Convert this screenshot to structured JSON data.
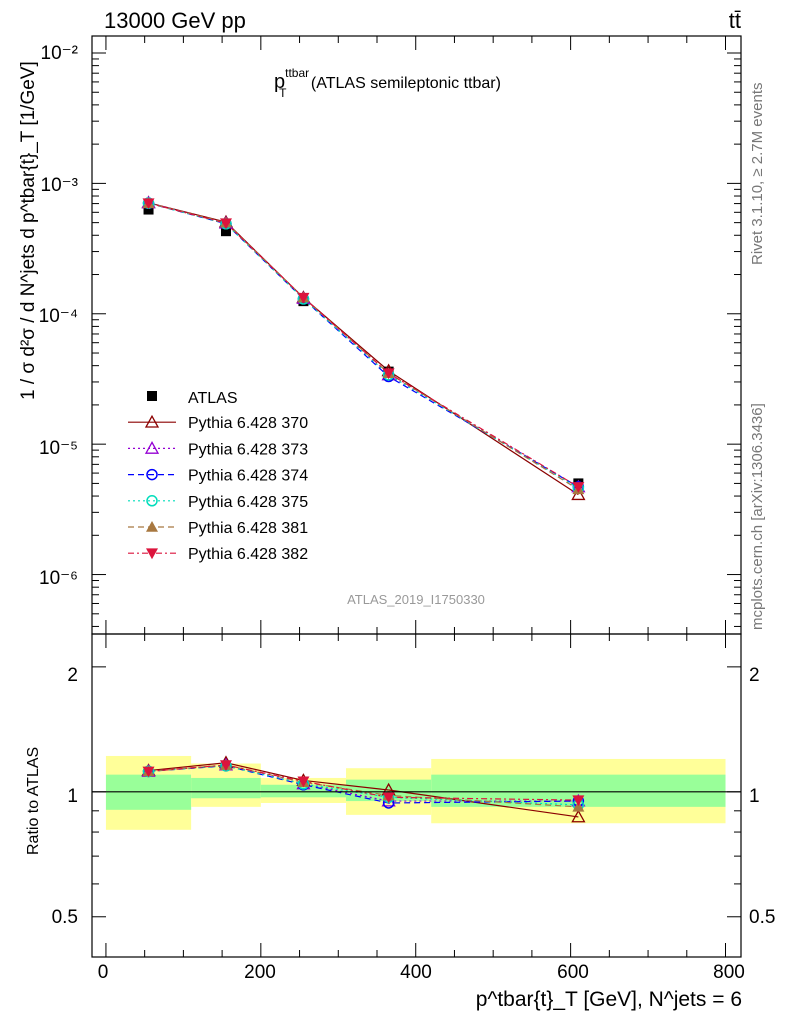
{
  "header": {
    "energy_label": "13000 GeV pp",
    "process_label": "tt̄"
  },
  "side": {
    "rivet_label": "Rivet 3.1.10, ≥ 2.7M events",
    "mcplots_label": "mcplots.cern.ch [arXiv:1306.3436]"
  },
  "main": {
    "title_main": "p",
    "title_sup": "ttbar",
    "title_sub": "T",
    "title_rest": " (ATLAS semileptonic ttbar)",
    "ylabel": "1 / σ d²σ / d N^jets d p^tbar{t}_T [1/GeV]",
    "analysis_id": "ATLAS_2019_I1750330",
    "ytick_labels": [
      "10⁻⁶",
      "10⁻⁵",
      "10⁻⁴",
      "10⁻³",
      "10⁻²"
    ]
  },
  "ratio": {
    "ylabel": "Ratio to ATLAS",
    "ytick_labels": [
      "0.5",
      "1",
      "2"
    ],
    "ytick_labels_right": [
      "0.5",
      "1",
      "2"
    ]
  },
  "xaxis": {
    "tick_labels": [
      "0",
      "200",
      "400",
      "600",
      "800"
    ],
    "label": "p^tbar{t}_T [GeV], N^jets = 6"
  },
  "colors": {
    "band_yellow": "#ffff99",
    "band_green": "#99ff99",
    "pythia370": "#8b0000",
    "pythia373": "#9400d3",
    "pythia374": "#0000ff",
    "pythia375": "#00ddbb",
    "pythia381": "#a87840",
    "pythia382": "#dc143c"
  },
  "chart_data": {
    "type": "scatter",
    "title": "p_T^ttbar (ATLAS semileptonic ttbar)",
    "xlabel": "p_T^tbar{t} [GeV], N^jets = 6",
    "ylabel": "1 / σ d²σ / d N^jets d p_T^tbar{t} [1/GeV]",
    "xlim": [
      -18,
      820
    ],
    "ylim": [
      3.5e-07,
      0.0135
    ],
    "yscale": "log",
    "bins": [
      [
        0,
        110
      ],
      [
        110,
        200
      ],
      [
        200,
        310
      ],
      [
        310,
        420
      ],
      [
        420,
        800
      ]
    ],
    "x": [
      55,
      155,
      255,
      365,
      610
    ],
    "data": {
      "name": "ATLAS",
      "values": [
        0.00063,
        0.00043,
        0.000125,
        3.6e-05,
        5e-06
      ],
      "marker": "square"
    },
    "series": [
      {
        "name": "Pythia 6.428 370",
        "values": [
          0.00071,
          0.000505,
          0.000133,
          3.65e-05,
          4.1e-06
        ],
        "ratio": [
          1.125,
          1.175,
          1.065,
          1.01,
          0.87
        ],
        "marker": "triangle-up-open",
        "color": "#8b0000",
        "dash": "solid"
      },
      {
        "name": "Pythia 6.428 373",
        "values": [
          0.00071,
          0.000495,
          0.000131,
          3.4e-05,
          4.7e-06
        ],
        "ratio": [
          1.12,
          1.16,
          1.045,
          0.95,
          0.95
        ],
        "marker": "triangle-up-open",
        "color": "#9400d3",
        "dash": "dotted"
      },
      {
        "name": "Pythia 6.428 374",
        "values": [
          0.000705,
          0.00049,
          0.00013,
          3.3e-05,
          4.7e-06
        ],
        "ratio": [
          1.12,
          1.155,
          1.04,
          0.94,
          0.95
        ],
        "marker": "circle-open",
        "color": "#0000ff",
        "dash": "dashed"
      },
      {
        "name": "Pythia 6.428 375",
        "values": [
          0.000705,
          0.00049,
          0.00013,
          3.4e-05,
          4.6e-06
        ],
        "ratio": [
          1.12,
          1.155,
          1.045,
          0.97,
          0.93
        ],
        "marker": "circle-open",
        "color": "#00ddbb",
        "dash": "dotted"
      },
      {
        "name": "Pythia 6.428 381",
        "values": [
          0.000705,
          0.0005,
          0.000133,
          3.5e-05,
          4.5e-06
        ],
        "ratio": [
          1.12,
          1.16,
          1.055,
          0.98,
          0.92
        ],
        "marker": "triangle-up-filled",
        "color": "#a87840",
        "dash": "dashed"
      },
      {
        "name": "Pythia 6.428 382",
        "values": [
          0.000705,
          0.000495,
          0.000133,
          3.5e-05,
          4.7e-06
        ],
        "ratio": [
          1.12,
          1.16,
          1.06,
          0.97,
          0.955
        ],
        "marker": "triangle-down-filled",
        "color": "#dc143c",
        "dash": "dashdot"
      }
    ],
    "ratio_panel": {
      "ylabel": "Ratio to ATLAS",
      "ylim": [
        0.4,
        2.4
      ],
      "yscale": "log",
      "band_yellow": [
        [
          0.81,
          1.22
        ],
        [
          0.92,
          1.17
        ],
        [
          0.94,
          1.08
        ],
        [
          0.88,
          1.14
        ],
        [
          0.84,
          1.2
        ]
      ],
      "band_green": [
        [
          0.905,
          1.1
        ],
        [
          0.965,
          1.08
        ],
        [
          0.97,
          1.04
        ],
        [
          0.95,
          1.07
        ],
        [
          0.92,
          1.1
        ]
      ]
    }
  }
}
